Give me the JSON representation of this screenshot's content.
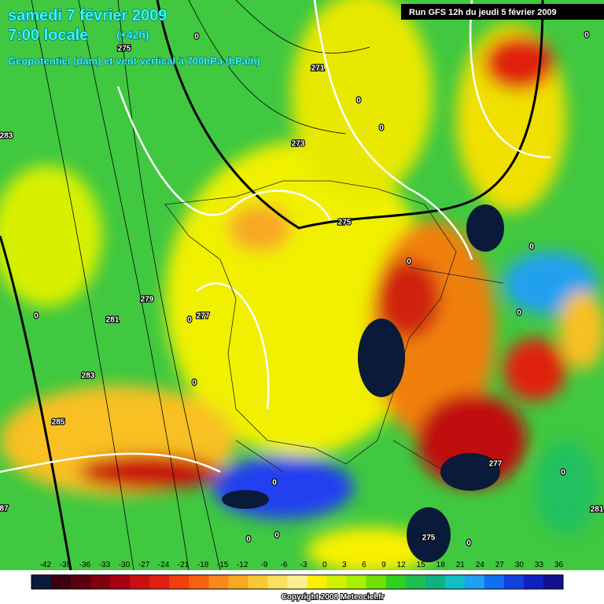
{
  "header": {
    "date": "samedi 7 février 2009",
    "time": "7:00 locale",
    "lead": "(+42h)",
    "subtitle": "Geopotentiel (dam) et vent vertical à 700hPa (hPa/h)",
    "run": "Run GFS 12h du jeudi 5 février 2009"
  },
  "contour_labels": [
    "0",
    "271",
    "0",
    "0",
    "273",
    "275",
    "279",
    "277",
    "0",
    "281",
    "0",
    "283",
    "283",
    "285",
    "0",
    "0",
    "0",
    "0",
    "277",
    "275",
    "0",
    "0",
    "281",
    "87",
    "0",
    "0",
    "0",
    "0",
    "0",
    "275"
  ],
  "colorbar": {
    "labels": [
      "-42",
      "-39",
      "-36",
      "-33",
      "-30",
      "-27",
      "-24",
      "-21",
      "-18",
      "-15",
      "-12",
      "-9",
      "-6",
      "-3",
      "0",
      "3",
      "6",
      "9",
      "12",
      "15",
      "18",
      "21",
      "24",
      "27",
      "30",
      "33",
      "36"
    ],
    "colors": [
      "#0a1a3a",
      "#3a0010",
      "#5a0010",
      "#800010",
      "#a80010",
      "#c81010",
      "#e02010",
      "#f04010",
      "#f86010",
      "#f88818",
      "#f8a820",
      "#f8c830",
      "#f8e060",
      "#f8f090",
      "#f8f000",
      "#d0f000",
      "#a8f000",
      "#70e000",
      "#30d020",
      "#20c050",
      "#10b080",
      "#10c0c0",
      "#20a0f0",
      "#1070f0",
      "#1040e0",
      "#1020c0",
      "#101090"
    ]
  },
  "footer": {
    "copyright": "Copyright 2008 Meteociel.fr"
  }
}
